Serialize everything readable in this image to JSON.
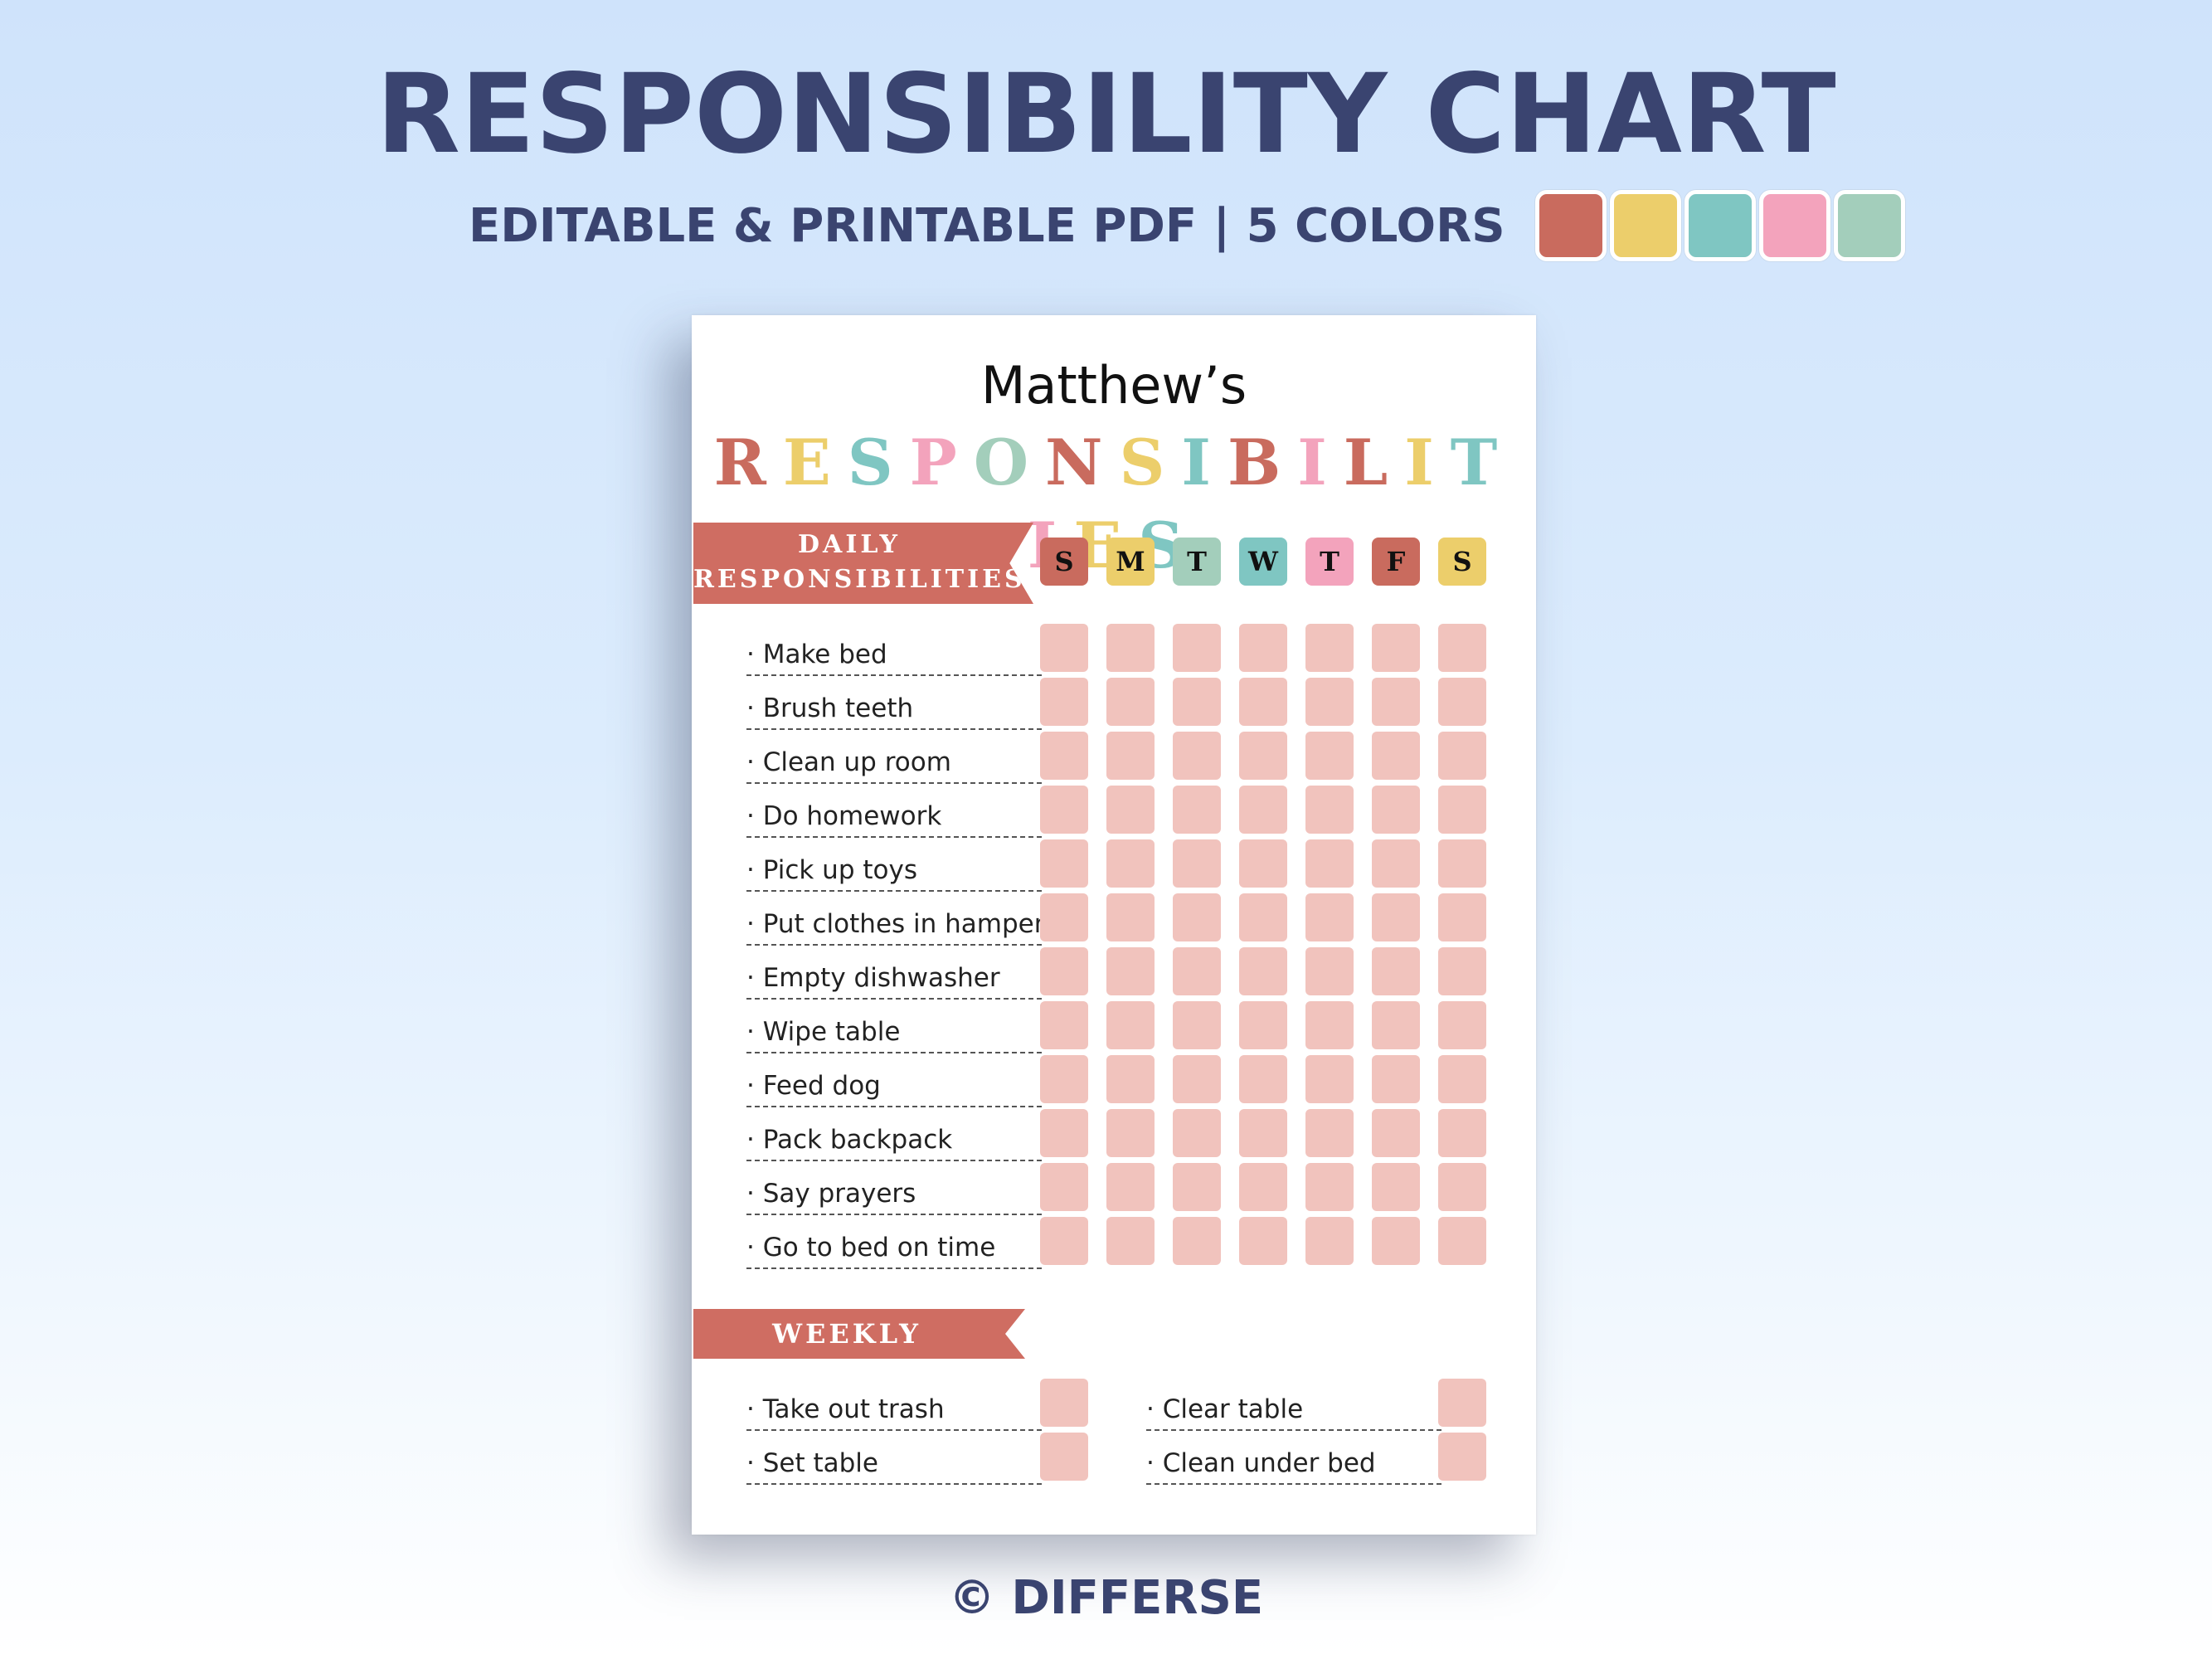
{
  "header": {
    "title": "RESPONSIBILITY CHART",
    "subtitle": "EDITABLE & PRINTABLE PDF | 5 COLORS",
    "swatches": [
      "#c96b5e",
      "#ecce6b",
      "#7fc6c2",
      "#f3a3bc",
      "#a3cebb"
    ]
  },
  "sheet": {
    "name": "Matthew’s",
    "title_letters": [
      "R",
      "E",
      "S",
      "P",
      "O",
      "N",
      "S",
      "I",
      "B",
      "I",
      "L",
      "I",
      "T",
      "I",
      "E",
      "S"
    ],
    "title_colors": [
      "#c96b5e",
      "#ecce6b",
      "#7fc6c2",
      "#f3a3bc",
      "#a3cebb",
      "#c96b5e",
      "#ecce6b",
      "#7fc6c2",
      "#c96b5e",
      "#f3a3bc",
      "#c96b5e",
      "#ecce6b",
      "#7fc6c2",
      "#f3a3bc",
      "#ecce6b",
      "#7fc6c2"
    ],
    "daily_heading": "DAILY\nRESPONSIBILITIES",
    "days": [
      {
        "label": "S",
        "color": "#c96b5e"
      },
      {
        "label": "M",
        "color": "#ecce6b"
      },
      {
        "label": "T",
        "color": "#a3cebb"
      },
      {
        "label": "W",
        "color": "#7fc6c2"
      },
      {
        "label": "T",
        "color": "#f3a3bc"
      },
      {
        "label": "F",
        "color": "#c96b5e"
      },
      {
        "label": "S",
        "color": "#ecce6b"
      }
    ],
    "daily_tasks": [
      "· Make bed",
      "· Brush teeth",
      "· Clean up room",
      "· Do homework",
      "· Pick up toys",
      "· Put clothes in hamper",
      "· Empty dishwasher",
      "· Wipe table",
      "· Feed dog",
      "· Pack backpack",
      "· Say prayers",
      "· Go to bed on time"
    ],
    "weekly_heading": "WEEKLY CHORES",
    "weekly_tasks_left": [
      "· Take out trash",
      "· Set table"
    ],
    "weekly_tasks_right": [
      "· Clear table",
      "· Clean under bed"
    ],
    "cell_color": "#f1c3bd",
    "ribbon_color": "#cf6d62"
  },
  "footer": {
    "credit": "© DIFFERSE"
  }
}
